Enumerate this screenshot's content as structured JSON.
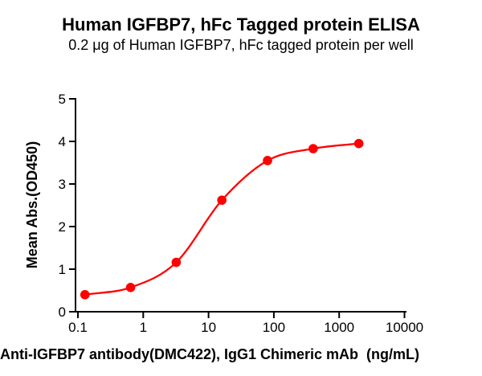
{
  "title": "Human IGFBP7, hFc Tagged protein ELISA",
  "subtitle": "0.2 μg of Human IGFBP7, hFc tagged protein per well",
  "chart_data": {
    "type": "scatter",
    "title": "Human IGFBP7, hFc Tagged protein ELISA",
    "subtitle": "0.2 μg of Human IGFBP7, hFc tagged protein per well",
    "xlabel": "Anti-IGFBP7 antibody(DMC422), IgG1 Chimeric mAb  (ng/mL)",
    "ylabel": "Mean Abs.(OD450)",
    "x_scale": "log10",
    "xlim": [
      0.1,
      10000
    ],
    "ylim": [
      0,
      5
    ],
    "x_ticks": [
      "0.1",
      "1",
      "10",
      "100",
      "1000",
      "10000"
    ],
    "y_ticks": [
      "0",
      "1",
      "2",
      "3",
      "4",
      "5"
    ],
    "grid": false,
    "legend_position": "none",
    "axis_color": "#000000",
    "background_color": "#ffffff",
    "series": [
      {
        "name": "Anti-IGFBP7 antibody (DMC422), IgG1 Chimeric mAb",
        "x": [
          0.128,
          0.64,
          3.2,
          16,
          80,
          400,
          2000
        ],
        "y": [
          0.4,
          0.57,
          1.16,
          2.62,
          3.55,
          3.83,
          3.95
        ],
        "marker": "circle",
        "color": "#ff0000",
        "curve": "sigmoid-fit-through-points"
      }
    ]
  }
}
